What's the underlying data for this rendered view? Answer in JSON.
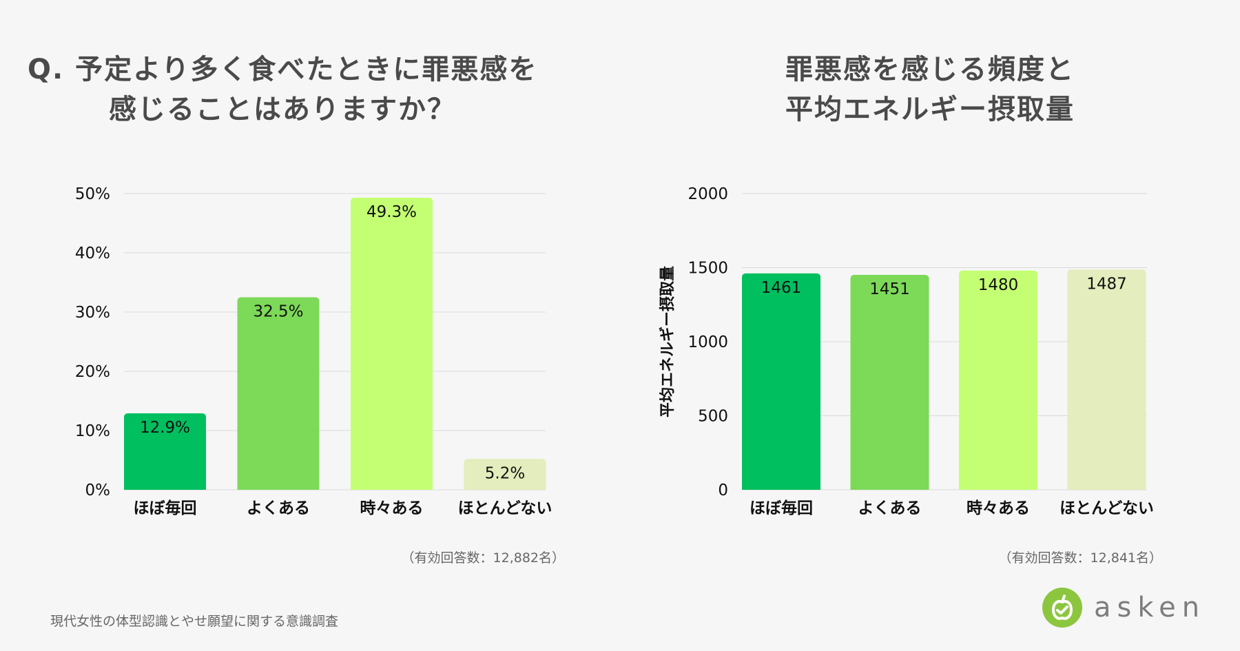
{
  "titles": {
    "left": [
      "Q. 予定より多く食べたときに罪悪感を",
      "感じることはありますか？"
    ],
    "right": [
      "罪悪感を感じる頻度と",
      "平均エネルギー摂取量"
    ]
  },
  "notes": {
    "left": "（有効回答数：12,882名）",
    "right": "（有効回答数：12,841名）"
  },
  "footer": "現代女性の体型認識とやせ願望に関する意識調査",
  "logo": {
    "text": "asken",
    "icon": "apple-logo-icon",
    "color": "#8cc63f"
  },
  "chart_data": [
    {
      "type": "bar",
      "categories": [
        "ほぼ毎回",
        "よくある",
        "時々ある",
        "ほとんどない"
      ],
      "values": [
        12.9,
        32.5,
        49.3,
        5.2
      ],
      "value_labels": [
        "12.9%",
        "32.5%",
        "49.3%",
        "5.2%"
      ],
      "colors": [
        "#00bf5f",
        "#7dd958",
        "#c4ff73",
        "#e3edbd"
      ],
      "ylim": [
        0,
        50
      ],
      "yticks": [
        0,
        10,
        20,
        30,
        40,
        50
      ],
      "ytick_labels": [
        "0%",
        "10%",
        "20%",
        "30%",
        "40%",
        "50%"
      ],
      "ylabel": "",
      "grid": true
    },
    {
      "type": "bar",
      "categories": [
        "ほぼ毎回",
        "よくある",
        "時々ある",
        "ほとんどない"
      ],
      "values": [
        1461,
        1451,
        1480,
        1487
      ],
      "value_labels": [
        "1461",
        "1451",
        "1480",
        "1487"
      ],
      "colors": [
        "#00bf5f",
        "#7dd958",
        "#c4ff73",
        "#e3edbd"
      ],
      "ylim": [
        0,
        2000
      ],
      "yticks": [
        0,
        500,
        1000,
        1500,
        2000
      ],
      "ytick_labels": [
        "0",
        "500",
        "1000",
        "1500",
        "2000"
      ],
      "ylabel": "平均エネルギー摂取量",
      "grid": true
    }
  ]
}
